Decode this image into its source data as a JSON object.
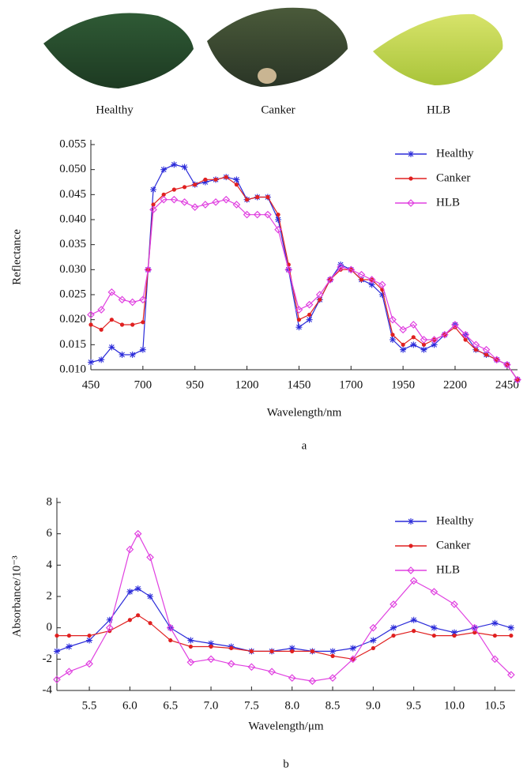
{
  "photos": {
    "labels": [
      "Healthy",
      "Canker",
      "HLB"
    ]
  },
  "chart_data": [
    {
      "type": "line",
      "caption": "a",
      "xlabel": "Wavelength/nm",
      "ylabel": "Reflectance",
      "legend": "upper-right",
      "xlim": [
        450,
        2500
      ],
      "xticks": [
        450,
        700,
        950,
        1200,
        1450,
        1700,
        1950,
        2200,
        2450
      ],
      "ylim": [
        0.01,
        0.055
      ],
      "yticks": [
        {
          "value": 0.01,
          "label": "0.010"
        },
        0.015,
        {
          "value": 0.02,
          "label": "0.020"
        },
        0.025,
        {
          "value": 0.03,
          "label": "0.030"
        },
        0.035,
        {
          "value": 0.04,
          "label": "0.040"
        },
        0.045,
        {
          "value": 0.05,
          "label": "0.050"
        },
        0.055
      ],
      "x": [
        450,
        500,
        550,
        600,
        650,
        700,
        725,
        750,
        800,
        850,
        900,
        950,
        1000,
        1050,
        1100,
        1150,
        1200,
        1250,
        1300,
        1350,
        1400,
        1450,
        1500,
        1550,
        1600,
        1650,
        1700,
        1750,
        1800,
        1850,
        1900,
        1950,
        2000,
        2050,
        2100,
        2150,
        2200,
        2250,
        2300,
        2350,
        2400,
        2450,
        2500
      ],
      "series": [
        {
          "name": "Healthy",
          "color": "#2b2bd9",
          "marker": "asterisk",
          "values": [
            0.0115,
            0.012,
            0.0145,
            0.013,
            0.013,
            0.014,
            0.03,
            0.046,
            0.05,
            0.051,
            0.0505,
            0.047,
            0.0475,
            0.048,
            0.0485,
            0.048,
            0.044,
            0.0445,
            0.0445,
            0.04,
            0.03,
            0.0185,
            0.02,
            0.024,
            0.028,
            0.031,
            0.03,
            0.028,
            0.027,
            0.025,
            0.016,
            0.014,
            0.015,
            0.014,
            0.015,
            0.017,
            0.019,
            0.017,
            0.014,
            0.013,
            0.012,
            0.011,
            0.008
          ]
        },
        {
          "name": "Canker",
          "color": "#e02020",
          "marker": "dot",
          "values": [
            0.019,
            0.018,
            0.02,
            0.019,
            0.019,
            0.0195,
            0.03,
            0.043,
            0.045,
            0.046,
            0.0465,
            0.047,
            0.048,
            0.048,
            0.0485,
            0.047,
            0.044,
            0.0445,
            0.0445,
            0.041,
            0.031,
            0.02,
            0.021,
            0.024,
            0.028,
            0.03,
            0.03,
            0.028,
            0.028,
            0.026,
            0.017,
            0.015,
            0.0165,
            0.015,
            0.016,
            0.017,
            0.0185,
            0.016,
            0.014,
            0.013,
            0.012,
            0.011,
            0.008
          ]
        },
        {
          "name": "HLB",
          "color": "#e040e0",
          "marker": "diamond",
          "values": [
            0.021,
            0.022,
            0.0255,
            0.024,
            0.0235,
            0.024,
            0.03,
            0.042,
            0.044,
            0.044,
            0.0435,
            0.0425,
            0.043,
            0.0435,
            0.044,
            0.043,
            0.041,
            0.041,
            0.041,
            0.038,
            0.03,
            0.022,
            0.023,
            0.025,
            0.028,
            0.0305,
            0.03,
            0.029,
            0.028,
            0.027,
            0.02,
            0.018,
            0.019,
            0.016,
            0.016,
            0.017,
            0.019,
            0.017,
            0.015,
            0.014,
            0.012,
            0.011,
            0.008
          ]
        }
      ]
    },
    {
      "type": "line",
      "caption": "b",
      "xlabel": "Wavelength/μm",
      "ylabel": "Absorbance/10⁻³",
      "legend": "upper-right",
      "xlim": [
        5.1,
        10.75
      ],
      "xticks": [
        5.5,
        {
          "value": 6,
          "label": "6.0"
        },
        6.5,
        {
          "value": 7,
          "label": "7.0"
        },
        7.5,
        {
          "value": 8,
          "label": "8.0"
        },
        8.5,
        {
          "value": 9,
          "label": "9.0"
        },
        9.5,
        {
          "value": 10,
          "label": "10.0"
        },
        10.5
      ],
      "ylim": [
        -4,
        8
      ],
      "yticks": [
        -4,
        -2,
        0,
        2,
        4,
        6,
        8
      ],
      "x": [
        5.1,
        5.25,
        5.5,
        5.75,
        6.0,
        6.1,
        6.25,
        6.5,
        6.75,
        7.0,
        7.25,
        7.5,
        7.75,
        8.0,
        8.25,
        8.5,
        8.75,
        9.0,
        9.25,
        9.5,
        9.75,
        10.0,
        10.25,
        10.5,
        10.7
      ],
      "series": [
        {
          "name": "Healthy",
          "color": "#2b2bd9",
          "marker": "asterisk",
          "values": [
            -1.5,
            -1.2,
            -0.8,
            0.5,
            2.3,
            2.5,
            2,
            0,
            -0.8,
            -1,
            -1.2,
            -1.5,
            -1.5,
            -1.3,
            -1.5,
            -1.5,
            -1.3,
            -0.8,
            0,
            0.5,
            0,
            -0.3,
            0,
            0.3,
            0
          ]
        },
        {
          "name": "Canker",
          "color": "#e02020",
          "marker": "dot",
          "values": [
            -0.5,
            -0.5,
            -0.5,
            -0.2,
            0.5,
            0.8,
            0.3,
            -0.8,
            -1.2,
            -1.2,
            -1.3,
            -1.5,
            -1.5,
            -1.5,
            -1.5,
            -1.8,
            -2,
            -1.3,
            -0.5,
            -0.2,
            -0.5,
            -0.5,
            -0.3,
            -0.5,
            -0.5
          ]
        },
        {
          "name": "HLB",
          "color": "#e040e0",
          "marker": "diamond",
          "values": [
            -3.3,
            -2.8,
            -2.3,
            0,
            5,
            6,
            4.5,
            0,
            -2.2,
            -2,
            -2.3,
            -2.5,
            -2.8,
            -3.2,
            -3.4,
            -3.2,
            -2,
            0,
            1.5,
            3,
            2.3,
            1.5,
            0,
            -2,
            -3
          ]
        }
      ]
    }
  ]
}
